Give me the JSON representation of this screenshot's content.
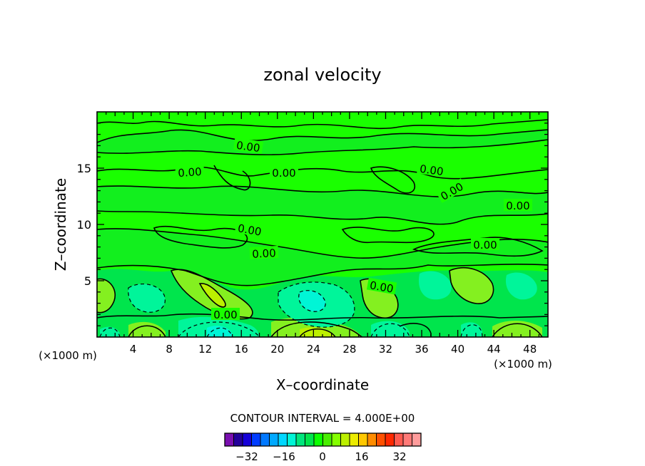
{
  "chart_data": {
    "type": "heatmap",
    "title": "zonal velocity",
    "xlabel": "X–coordinate",
    "ylabel": "Z–coordinate",
    "x_unit": "(×1000 m)",
    "z_unit": "(×1000 m)",
    "xlim": [
      0,
      50
    ],
    "ylim": [
      0,
      20
    ],
    "x_ticks": [
      4,
      8,
      12,
      16,
      20,
      24,
      28,
      32,
      36,
      40,
      44,
      48
    ],
    "y_ticks": [
      5,
      10,
      15
    ],
    "contour_interval_text": "CONTOUR INTERVAL = 4.000E+00",
    "contour_label": "0.00",
    "colorbar": {
      "colors": [
        "#7a0fb0",
        "#23009a",
        "#1500d8",
        "#003cff",
        "#0078ff",
        "#00a9ff",
        "#00d7ff",
        "#00f5d6",
        "#00e67c",
        "#00e54c",
        "#0cff00",
        "#48ee00",
        "#84ff00",
        "#bcf000",
        "#ecec00",
        "#ffc800",
        "#ff8c00",
        "#ff5000",
        "#ff2800",
        "#ff5a50",
        "#ff7a78",
        "#ff9c9c"
      ],
      "tick_labels": [
        "-32",
        "-16",
        "0",
        "16",
        "32"
      ],
      "tick_values": [
        -32,
        -16,
        0,
        16,
        32
      ]
    },
    "grid": false
  }
}
